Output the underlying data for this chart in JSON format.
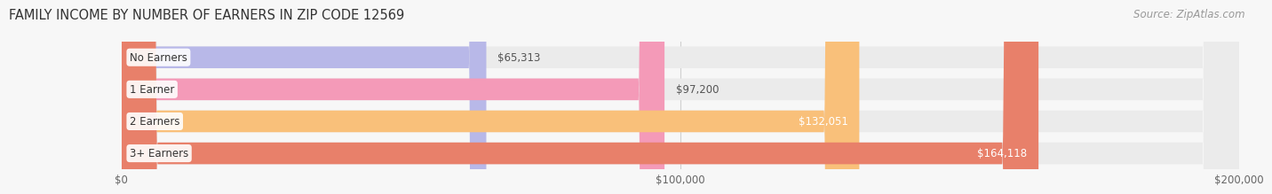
{
  "title": "FAMILY INCOME BY NUMBER OF EARNERS IN ZIP CODE 12569",
  "source": "Source: ZipAtlas.com",
  "categories": [
    "No Earners",
    "1 Earner",
    "2 Earners",
    "3+ Earners"
  ],
  "values": [
    65313,
    97200,
    132051,
    164118
  ],
  "bar_colors": [
    "#b8b8e8",
    "#f49ab8",
    "#f9c07a",
    "#e8806a"
  ],
  "bar_bg_color": "#ebebeb",
  "value_labels": [
    "$65,313",
    "$97,200",
    "$132,051",
    "$164,118"
  ],
  "label_inside": [
    false,
    false,
    true,
    true
  ],
  "label_color_outside": "#555555",
  "label_color_inside": "#ffffff",
  "xlim": [
    0,
    200000
  ],
  "xtick_values": [
    0,
    100000,
    200000
  ],
  "xtick_labels": [
    "$0",
    "$100,000",
    "$200,000"
  ],
  "background_color": "#f7f7f7",
  "bar_height": 0.68,
  "title_fontsize": 10.5,
  "source_fontsize": 8.5,
  "label_fontsize": 8.5,
  "category_fontsize": 8.5,
  "tick_fontsize": 8.5
}
